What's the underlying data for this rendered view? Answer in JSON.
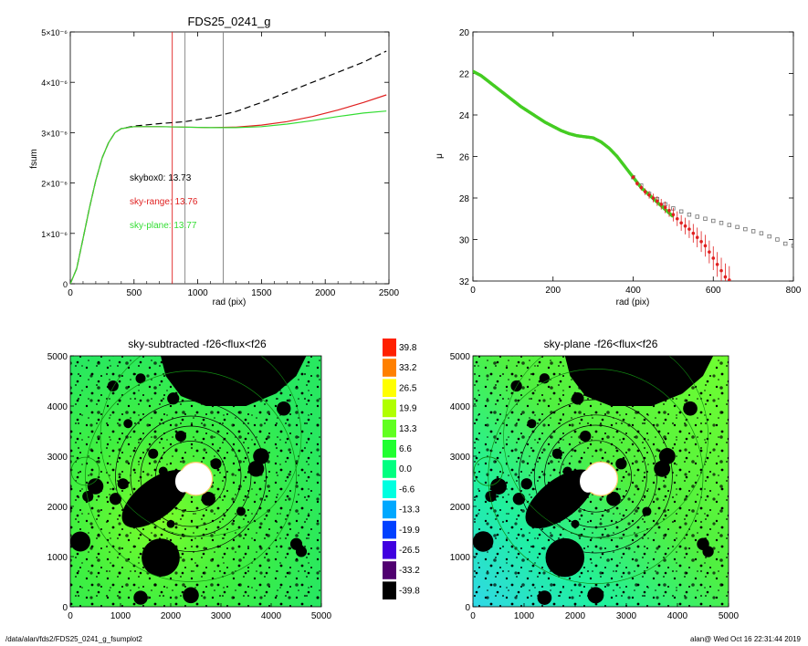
{
  "footer": {
    "left": "/data/alan/fds2/FDS25_0241_g_fsumplot2",
    "right": "alan@  Wed Oct 16 22:31:44 2019"
  },
  "chart_data": [
    {
      "type": "line",
      "title": "FDS25_0241_g",
      "xlabel": "rad (pix)",
      "ylabel": "fsum",
      "xlim": [
        0,
        2500
      ],
      "ylim": [
        0,
        5e-06
      ],
      "x_ticks": [
        0,
        500,
        1000,
        1500,
        2000,
        2500
      ],
      "y_ticks": [
        0,
        1e-06,
        2e-06,
        3e-06,
        4e-06,
        5e-06
      ],
      "y_tick_labels": [
        "0",
        "1×10⁻⁶",
        "2×10⁻⁶",
        "3×10⁻⁶",
        "4×10⁻⁶",
        "5×10⁻⁶"
      ],
      "vertical_lines": [
        {
          "x": 800,
          "color": "#e02020"
        },
        {
          "x": 900,
          "color": "#808080"
        },
        {
          "x": 1200,
          "color": "#808080"
        }
      ],
      "annotations": [
        {
          "text": "skybox0: 13.73",
          "color": "#000000",
          "x": 900,
          "y": 2e-06
        },
        {
          "text": "sky-range: 13.76",
          "color": "#e02020",
          "x": 900,
          "y": 1.6e-06
        },
        {
          "text": "sky-plane: 13.77",
          "color": "#33dd33",
          "x": 900,
          "y": 1e-06
        }
      ],
      "series": [
        {
          "style": "dashed",
          "color": "#000000",
          "x": [
            0,
            50,
            100,
            150,
            200,
            250,
            300,
            350,
            400,
            500,
            700,
            900,
            1100,
            1300,
            1500,
            1700,
            1900,
            2100,
            2300,
            2480
          ],
          "y": [
            0,
            3e-07,
            9e-07,
            1.5e-06,
            2.05e-06,
            2.5e-06,
            2.8e-06,
            3e-06,
            3.08e-06,
            3.13e-06,
            3.18e-06,
            3.22e-06,
            3.3e-06,
            3.42e-06,
            3.6e-06,
            3.8e-06,
            4e-06,
            4.2e-06,
            4.4e-06,
            4.62e-06
          ]
        },
        {
          "style": "solid",
          "color": "#e02020",
          "x": [
            0,
            50,
            100,
            150,
            200,
            250,
            300,
            350,
            400,
            500,
            700,
            900,
            1100,
            1300,
            1500,
            1700,
            1900,
            2100,
            2300,
            2480
          ],
          "y": [
            0,
            3e-07,
            9e-07,
            1.5e-06,
            2.05e-06,
            2.5e-06,
            2.8e-06,
            3e-06,
            3.08e-06,
            3.12e-06,
            3.12e-06,
            3.11e-06,
            3.1e-06,
            3.11e-06,
            3.15e-06,
            3.22e-06,
            3.32e-06,
            3.45e-06,
            3.6e-06,
            3.75e-06
          ]
        },
        {
          "style": "solid",
          "color": "#33dd33",
          "x": [
            0,
            50,
            100,
            150,
            200,
            250,
            300,
            350,
            400,
            500,
            700,
            900,
            1100,
            1300,
            1500,
            1700,
            1900,
            2100,
            2300,
            2480
          ],
          "y": [
            0,
            3e-07,
            9e-07,
            1.5e-06,
            2.05e-06,
            2.5e-06,
            2.8e-06,
            3e-06,
            3.08e-06,
            3.12e-06,
            3.12e-06,
            3.11e-06,
            3.1e-06,
            3.1e-06,
            3.12e-06,
            3.17e-06,
            3.24e-06,
            3.32e-06,
            3.39e-06,
            3.43e-06
          ]
        }
      ]
    },
    {
      "type": "scatter",
      "title": "",
      "xlabel": "rad (pix)",
      "ylabel": "μ",
      "xlim": [
        0,
        800
      ],
      "ylim": [
        32,
        20
      ],
      "x_ticks": [
        0,
        200,
        400,
        600,
        800
      ],
      "y_ticks": [
        20,
        22,
        24,
        26,
        28,
        30,
        32
      ],
      "profile_green": {
        "color": "#44cc22",
        "x": [
          0,
          10,
          20,
          40,
          60,
          80,
          100,
          120,
          140,
          160,
          180,
          200,
          220,
          240,
          260,
          280,
          300,
          320,
          340,
          360,
          380,
          400,
          420,
          440,
          460,
          480,
          500
        ],
        "y": [
          21.9,
          22.0,
          22.1,
          22.4,
          22.7,
          23.0,
          23.3,
          23.6,
          23.85,
          24.1,
          24.35,
          24.55,
          24.75,
          24.9,
          25.0,
          25.05,
          25.1,
          25.3,
          25.6,
          26.0,
          26.5,
          27.0,
          27.5,
          27.85,
          28.2,
          28.55,
          28.9
        ]
      },
      "points_red": {
        "color": "#e02020",
        "x": [
          400,
          410,
          420,
          430,
          440,
          450,
          460,
          470,
          480,
          490,
          500,
          510,
          520,
          530,
          540,
          550,
          560,
          570,
          580,
          590,
          600,
          610,
          620,
          630,
          640
        ],
        "y": [
          27.0,
          27.3,
          27.5,
          27.7,
          27.85,
          28.0,
          28.15,
          28.3,
          28.45,
          28.6,
          28.8,
          29.0,
          29.2,
          29.35,
          29.5,
          29.7,
          29.9,
          30.1,
          30.3,
          30.6,
          30.9,
          31.2,
          31.5,
          31.8,
          31.95
        ]
      },
      "points_grey": {
        "color": "#707070",
        "x": [
          400,
          420,
          440,
          460,
          480,
          500,
          520,
          540,
          560,
          580,
          600,
          620,
          640,
          660,
          680,
          700,
          720,
          740,
          760,
          780,
          800
        ],
        "y": [
          27.0,
          27.4,
          27.8,
          28.05,
          28.3,
          28.5,
          28.65,
          28.8,
          28.9,
          29.0,
          29.1,
          29.2,
          29.3,
          29.4,
          29.5,
          29.6,
          29.7,
          29.85,
          30.0,
          30.2,
          30.3
        ]
      }
    },
    {
      "type": "heatmap",
      "title": "sky-subtracted -f26<flux<f26",
      "xlim": [
        0,
        5000
      ],
      "ylim": [
        0,
        5000
      ],
      "x_ticks": [
        0,
        1000,
        2000,
        3000,
        4000,
        5000
      ],
      "y_ticks": [
        0,
        1000,
        2000,
        3000,
        4000,
        5000
      ],
      "center": [
        2400,
        2600
      ]
    },
    {
      "type": "heatmap",
      "title": "sky-plane -f26<flux<f26",
      "xlim": [
        0,
        5000
      ],
      "ylim": [
        0,
        5000
      ],
      "x_ticks": [
        0,
        1000,
        2000,
        3000,
        4000,
        5000
      ],
      "y_ticks": [
        0,
        1000,
        2000,
        3000,
        4000,
        5000
      ],
      "center": [
        2400,
        2600
      ]
    }
  ],
  "colorbar": {
    "labels": [
      "39.8",
      "33.2",
      "26.5",
      "19.9",
      "13.3",
      "6.6",
      "0.0",
      "-6.6",
      "-13.3",
      "-19.9",
      "-26.5",
      "-33.2",
      "-39.8"
    ],
    "colors": [
      "#ff2000",
      "#ff8000",
      "#ffff00",
      "#b0ff00",
      "#60ff20",
      "#20ff30",
      "#00ff80",
      "#00ffe0",
      "#00a8ff",
      "#0040ff",
      "#4000e0",
      "#500070",
      "#000000"
    ]
  }
}
